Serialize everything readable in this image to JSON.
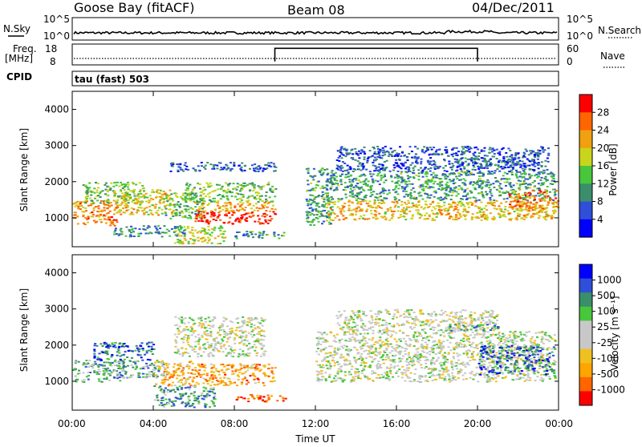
{
  "header": {
    "station": "Goose Bay (fitACF)",
    "beam": "Beam 08",
    "date": "04/Dec/2011"
  },
  "noise_panel": {
    "left_label": "N.Sky",
    "right_label": "N.Search",
    "tick_top": "10^5",
    "tick_bottom": "10^0",
    "right_tick_top": "10^5",
    "right_tick_bottom": "10^0"
  },
  "freq_panel": {
    "left_label_1": "Freq.",
    "left_label_2": "[MHz]",
    "right_label": "Nave",
    "tick_top": "18",
    "tick_bottom": "8",
    "right_tick_top": "60",
    "right_tick_bottom": "0",
    "nave_step": {
      "x_start_hours": 10.0,
      "x_end_hours": 20.0,
      "high": 0.85,
      "low": 0.1
    }
  },
  "cpid": {
    "label": "CPID",
    "mode_text": "tau (fast) 503"
  },
  "chart_data": [
    {
      "type": "heatmap",
      "name": "power",
      "ylabel": "Slant Range [km]",
      "ylim": [
        200,
        4500
      ],
      "yticks": [
        "1000",
        "2000",
        "3000",
        "4000"
      ],
      "xlim_hours": [
        0,
        24
      ],
      "colorbar_label": "Power [dB]",
      "colorbar_ticks": [
        "28",
        "24",
        "20",
        "16",
        "12",
        "8",
        "4"
      ],
      "colors": [
        "#0000ff",
        "#2f4fd8",
        "#3a8f6a",
        "#48c63c",
        "#c8d51c",
        "#f0a010",
        "#ff6600",
        "#ff0000"
      ],
      "regions": [
        {
          "x": [
            0.0,
            2.2
          ],
          "y": [
            800,
            1500
          ],
          "level": 0.72
        },
        {
          "x": [
            0.5,
            3.5
          ],
          "y": [
            1400,
            2000
          ],
          "level": 0.45
        },
        {
          "x": [
            2.0,
            5.0
          ],
          "y": [
            1100,
            1800
          ],
          "level": 0.6
        },
        {
          "x": [
            4.5,
            6.5
          ],
          "y": [
            1000,
            1700
          ],
          "level": 0.4
        },
        {
          "x": [
            6.0,
            10.0
          ],
          "y": [
            850,
            1200
          ],
          "level": 0.95
        },
        {
          "x": [
            6.0,
            10.0
          ],
          "y": [
            1200,
            1450
          ],
          "level": 0.7
        },
        {
          "x": [
            5.5,
            10.0
          ],
          "y": [
            1450,
            2000
          ],
          "level": 0.45
        },
        {
          "x": [
            4.8,
            10.0
          ],
          "y": [
            2300,
            2550
          ],
          "level": 0.2
        },
        {
          "x": [
            5.0,
            7.5
          ],
          "y": [
            300,
            800
          ],
          "level": 0.55
        },
        {
          "x": [
            2.0,
            5.5
          ],
          "y": [
            500,
            800
          ],
          "level": 0.3
        },
        {
          "x": [
            8.0,
            10.5
          ],
          "y": [
            450,
            650
          ],
          "level": 0.35
        },
        {
          "x": [
            11.5,
            12.8
          ],
          "y": [
            800,
            2400
          ],
          "level": 0.35
        },
        {
          "x": [
            12.5,
            23.8
          ],
          "y": [
            950,
            1500
          ],
          "level": 0.65
        },
        {
          "x": [
            12.5,
            23.8
          ],
          "y": [
            1500,
            2300
          ],
          "level": 0.35
        },
        {
          "x": [
            13.0,
            23.5
          ],
          "y": [
            2300,
            3000
          ],
          "level": 0.2
        },
        {
          "x": [
            21.5,
            24.0
          ],
          "y": [
            1200,
            1800
          ],
          "level": 0.75
        },
        {
          "x": [
            19.0,
            22.0
          ],
          "y": [
            2400,
            2700
          ],
          "level": 0.25
        }
      ]
    },
    {
      "type": "heatmap",
      "name": "velocity",
      "ylabel": "Slant Range [km]",
      "ylim": [
        200,
        4500
      ],
      "yticks": [
        "1000",
        "2000",
        "3000",
        "4000"
      ],
      "xlim_hours": [
        0,
        24
      ],
      "xticks": [
        "00:00",
        "04:00",
        "08:00",
        "12:00",
        "16:00",
        "20:00",
        "00:00"
      ],
      "xlabel": "Time UT",
      "colorbar_label": "Velocity [m s⁻¹]",
      "colorbar_ticks": [
        "1000",
        "500",
        "100",
        "25",
        "-25",
        "-100",
        "-500",
        "-1000"
      ],
      "colors": [
        "#ff0000",
        "#ff6600",
        "#ffa500",
        "#f0c020",
        "#c8c8c8",
        "#c8c8c8",
        "#48c63c",
        "#3a8f6a",
        "#2f4fd8",
        "#0000ff"
      ],
      "regions": [
        {
          "x": [
            0.0,
            2.5
          ],
          "y": [
            1000,
            1600
          ],
          "level": 0.7
        },
        {
          "x": [
            1.0,
            4.0
          ],
          "y": [
            1600,
            2100
          ],
          "level": 0.82
        },
        {
          "x": [
            2.0,
            4.5
          ],
          "y": [
            1100,
            1600
          ],
          "level": 0.65
        },
        {
          "x": [
            4.0,
            6.0
          ],
          "y": [
            900,
            1600
          ],
          "level": 0.3
        },
        {
          "x": [
            6.0,
            10.0
          ],
          "y": [
            900,
            1500
          ],
          "level": 0.25
        },
        {
          "x": [
            5.0,
            9.5
          ],
          "y": [
            1700,
            2800
          ],
          "level": 0.5
        },
        {
          "x": [
            4.0,
            7.0
          ],
          "y": [
            300,
            900
          ],
          "level": 0.72
        },
        {
          "x": [
            8.0,
            10.5
          ],
          "y": [
            450,
            650
          ],
          "level": 0.18
        },
        {
          "x": [
            12.0,
            23.8
          ],
          "y": [
            1000,
            2400
          ],
          "level": 0.5
        },
        {
          "x": [
            13.0,
            21.0
          ],
          "y": [
            2400,
            3000
          ],
          "level": 0.5
        },
        {
          "x": [
            20.0,
            23.8
          ],
          "y": [
            1200,
            2000
          ],
          "level": 0.8
        },
        {
          "x": [
            18.5,
            21.0
          ],
          "y": [
            2400,
            2600
          ],
          "level": 0.72
        }
      ]
    }
  ]
}
